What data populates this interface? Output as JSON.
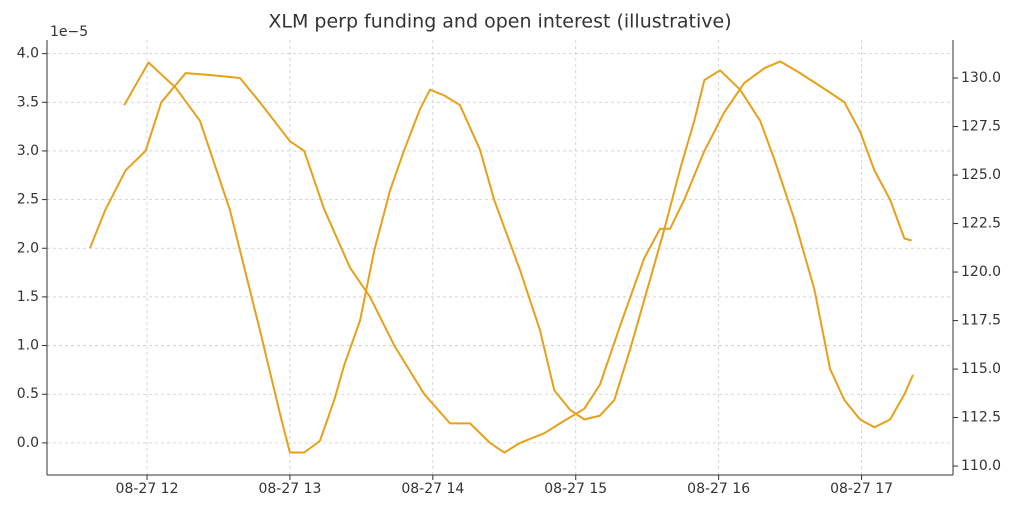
{
  "chart_data": {
    "type": "line",
    "title": "XLM perp funding and open interest (illustrative)",
    "y_offset_label": "1e−5",
    "grid": true,
    "xlim": [
      11.3,
      17.64
    ],
    "xticks": [
      {
        "value": 12,
        "label": "08-27 12"
      },
      {
        "value": 13,
        "label": "08-27 13"
      },
      {
        "value": 14,
        "label": "08-27 14"
      },
      {
        "value": 15,
        "label": "08-27 15"
      },
      {
        "value": 16,
        "label": "08-27 16"
      },
      {
        "value": 17,
        "label": "08-27 17"
      }
    ],
    "ylim": [
      -0.33,
      4.14
    ],
    "yticks": [
      {
        "value": 0,
        "label": "0.0"
      },
      0.5,
      {
        "value": 1,
        "label": "1.0"
      },
      1.5,
      {
        "value": 2,
        "label": "2.0"
      },
      2.5,
      {
        "value": 3,
        "label": "3.0"
      },
      3.5,
      {
        "value": 4,
        "label": "4.0"
      }
    ],
    "y2lim": [
      109.54,
      131.96
    ],
    "y2ticks": [
      {
        "value": 110,
        "label": "110.0"
      },
      112.5,
      {
        "value": 115,
        "label": "115.0"
      },
      117.5,
      {
        "value": 120,
        "label": "120.0"
      },
      122.5,
      {
        "value": 125,
        "label": "125.0"
      },
      127.5,
      {
        "value": 130,
        "label": "130.0"
      }
    ],
    "series": [
      {
        "color": "#e6a11a",
        "x": [
          11.6,
          11.71,
          11.85,
          11.99,
          12.1,
          12.27,
          12.44,
          12.65,
          12.79,
          13.0,
          13.1,
          13.24,
          13.42,
          13.56,
          13.73,
          13.94,
          14.12,
          14.26,
          14.4,
          14.5,
          14.61,
          14.78,
          14.89,
          15.06,
          15.17,
          15.31,
          15.48,
          15.59,
          15.66,
          15.76,
          15.9,
          16.04,
          16.18,
          16.32,
          16.43,
          16.57,
          16.78,
          16.88,
          16.99,
          17.09,
          17.2,
          17.3,
          17.35
        ],
        "values": [
          2.0,
          2.4,
          2.8,
          3.0,
          3.5,
          3.8,
          3.78,
          3.75,
          3.5,
          3.1,
          3.0,
          2.4,
          1.8,
          1.5,
          1.0,
          0.5,
          0.2,
          0.2,
          0.0,
          -0.1,
          0.0,
          0.1,
          0.2,
          0.35,
          0.6,
          1.2,
          1.9,
          2.2,
          2.2,
          2.5,
          3.0,
          3.4,
          3.7,
          3.85,
          3.92,
          3.8,
          3.6,
          3.5,
          3.2,
          2.8,
          2.5,
          2.1,
          2.08
        ]
      },
      {
        "color": "#e6a11a",
        "axis": "y2",
        "x": [
          11.84,
          12.01,
          12.2,
          12.37,
          12.58,
          12.79,
          12.94,
          13.0,
          13.1,
          13.21,
          13.31,
          13.38,
          13.49,
          13.59,
          13.7,
          13.8,
          13.91,
          13.98,
          14.08,
          14.19,
          14.33,
          14.43,
          14.61,
          14.75,
          14.85,
          14.96,
          15.06,
          15.17,
          15.27,
          15.38,
          15.52,
          15.62,
          15.73,
          15.83,
          15.9,
          16.01,
          16.15,
          16.29,
          16.39,
          16.53,
          16.67,
          16.78,
          16.88,
          16.99,
          17.09,
          17.2,
          17.3,
          17.36
        ],
        "values": [
          128.6,
          130.8,
          129.5,
          127.8,
          123.2,
          117,
          112.4,
          110.7,
          110.7,
          111.3,
          113.4,
          115.2,
          117.5,
          121.1,
          124.2,
          126.3,
          128.4,
          129.4,
          129.1,
          128.6,
          126.3,
          123.7,
          120.1,
          117,
          113.9,
          112.9,
          112.4,
          112.6,
          113.4,
          116,
          119.6,
          122.2,
          125.3,
          127.8,
          129.9,
          130.4,
          129.4,
          127.8,
          125.8,
          122.7,
          119.1,
          115,
          113.4,
          112.4,
          112,
          112.4,
          113.7,
          114.7
        ]
      }
    ]
  }
}
